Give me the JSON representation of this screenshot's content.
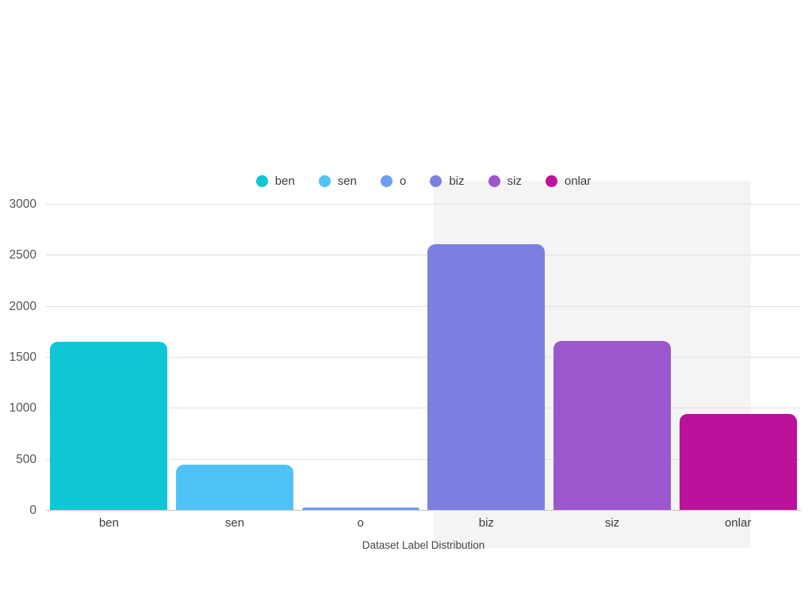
{
  "page": {
    "background_color": "#ffffff",
    "highlight_region_color": "#f4f4f4"
  },
  "chart_data": {
    "type": "bar",
    "title": "Dataset Label Distribution",
    "title_position": "bottom-center",
    "categories": [
      "ben",
      "sen",
      "o",
      "biz",
      "siz",
      "onlar"
    ],
    "values": [
      1650,
      440,
      20,
      2600,
      1655,
      940
    ],
    "colors": [
      "#0fc6d6",
      "#4fc3f7",
      "#6c9ff0",
      "#7b80e0",
      "#9c56ce",
      "#bb119b"
    ],
    "legend": {
      "position": "top-center",
      "items": [
        {
          "label": "ben",
          "color": "#0fc6d6"
        },
        {
          "label": "sen",
          "color": "#4fc3f7"
        },
        {
          "label": "o",
          "color": "#6c9ff0"
        },
        {
          "label": "biz",
          "color": "#7b80e0"
        },
        {
          "label": "siz",
          "color": "#9c56ce"
        },
        {
          "label": "onlar",
          "color": "#bb119b"
        }
      ]
    },
    "xlabel": "",
    "ylabel": "",
    "ylim": [
      0,
      3000
    ],
    "yticks": [
      0,
      500,
      1000,
      1500,
      2000,
      2500,
      3000
    ],
    "grid": true,
    "grid_color": "#e0e0e0",
    "axis_line_color": "#c4c4c4",
    "tick_label_color": "#555555"
  }
}
